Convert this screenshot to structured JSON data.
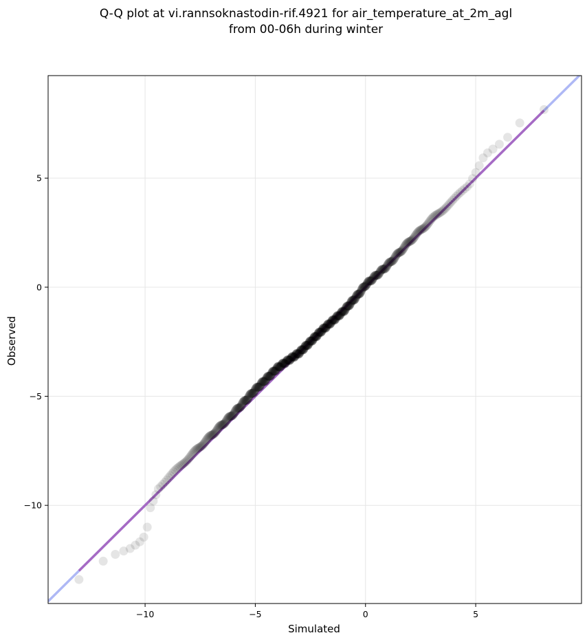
{
  "chart_data": {
    "type": "scatter",
    "title_line1": "Q-Q plot at vi.rannsoknastodin-rif.4921 for air_temperature_at_2m_agl",
    "title_line2": "from 00-06h during winter",
    "xlabel": "Simulated",
    "ylabel": "Observed",
    "xlim": [
      -14.4,
      9.8
    ],
    "ylim": [
      -14.5,
      9.7
    ],
    "xticks": [
      -10,
      -5,
      0,
      5
    ],
    "yticks": [
      -10,
      -5,
      0,
      5
    ],
    "xtick_labels": [
      "−10",
      "−5",
      "0",
      "5"
    ],
    "ytick_labels": [
      "−10",
      "−5",
      "0",
      "5"
    ],
    "grid": true,
    "reference_line": {
      "from": [
        -14.4,
        -14.4
      ],
      "to": [
        9.8,
        9.8
      ],
      "color": "#aab4f4"
    },
    "fit_line": {
      "from": [
        -13.0,
        -13.0
      ],
      "to": [
        8.1,
        8.1
      ],
      "color": "#a66ac4"
    },
    "point_color": "#000000",
    "quantile_anchors": {
      "x": [
        -13.0,
        -12.3,
        -11.4,
        -10.6,
        -10.1,
        -9.9,
        -9.8,
        -9.4,
        -8.8,
        -8.0,
        -7.0,
        -6.0,
        -5.0,
        -4.0,
        -3.0,
        -2.0,
        -1.0,
        -0.3,
        0.0,
        1.0,
        2.0,
        3.0,
        4.0,
        4.7,
        5.0,
        5.4,
        6.0,
        6.5,
        7.0,
        7.6,
        8.1
      ],
      "y": [
        -13.4,
        -12.8,
        -12.3,
        -12.0,
        -11.6,
        -11.0,
        -10.2,
        -9.2,
        -8.6,
        -7.8,
        -6.8,
        -5.8,
        -4.7,
        -3.7,
        -3.0,
        -2.0,
        -1.1,
        -0.3,
        0.1,
        1.0,
        2.1,
        3.1,
        4.0,
        4.7,
        5.3,
        6.1,
        6.5,
        6.9,
        7.5,
        7.9,
        8.6
      ]
    }
  }
}
